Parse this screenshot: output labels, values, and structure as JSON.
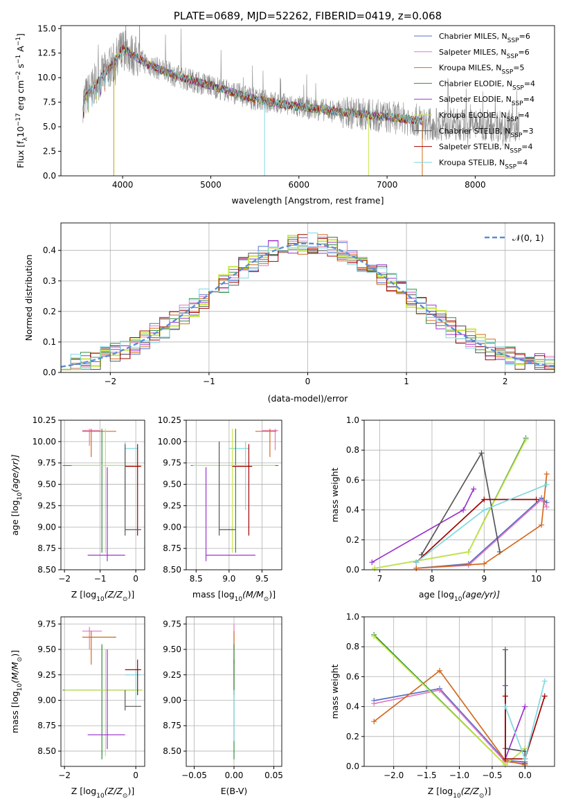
{
  "chart_data": [
    {
      "type": "line",
      "title": "PLATE=0689, MJD=52262, FIBERID=0419, z=0.068",
      "xlabel": "wavelength [Angstrom, rest frame]",
      "ylabel": "Flux [f",
      "ylabel_parts": [
        "Flux [f",
        "λ",
        "10",
        "−17",
        " erg cm",
        "−2",
        " s",
        "−1",
        " A",
        "−1",
        "]"
      ],
      "xlim": [
        3300,
        8900
      ],
      "ylim": [
        0,
        15.3
      ],
      "xticks": [
        "4000",
        "5000",
        "6000",
        "7000",
        "8000"
      ],
      "yticks": [
        "0.0",
        "2.5",
        "5.0",
        "7.5",
        "10.0",
        "12.5",
        "15.0"
      ],
      "legend_placement": "top-right",
      "series": [
        {
          "name": "Chabrier MILES, N",
          "sub": "SSP",
          "suffix": "=6",
          "color": "#5470c6"
        },
        {
          "name": "Salpeter MILES, N",
          "sub": "SSP",
          "suffix": "=6",
          "color": "#e377c2"
        },
        {
          "name": "Kroupa MILES, N",
          "sub": "SSP",
          "suffix": "=5",
          "color": "#d2691e"
        },
        {
          "name": "Chabrier ELODIE, N",
          "sub": "SSP",
          "suffix": "=4",
          "color": "#2e8b3e"
        },
        {
          "name": "Salpeter ELODIE, N",
          "sub": "SSP",
          "suffix": "=4",
          "color": "#9932cc"
        },
        {
          "name": "Kroupa ELODIE, N",
          "sub": "SSP",
          "suffix": "=4",
          "color": "#c8e64a"
        },
        {
          "name": "Chabrier STELIB, N",
          "sub": "SSP",
          "suffix": "=3",
          "color": "#555555"
        },
        {
          "name": "Salpeter STELIB, N",
          "sub": "SSP",
          "suffix": "=4",
          "color": "#a00000"
        },
        {
          "name": "Kroupa STELIB, N",
          "sub": "SSP",
          "suffix": "=4",
          "color": "#7fd8e0"
        }
      ],
      "continuum": {
        "x": [
          3550,
          3700,
          3900,
          4000,
          4100,
          4300,
          4600,
          5000,
          5500,
          6000,
          6500,
          7000,
          7400
        ],
        "y": [
          7.6,
          9.5,
          11.5,
          13.0,
          12.4,
          11.3,
          10.2,
          9.2,
          7.8,
          7.0,
          6.5,
          6.0,
          5.6
        ]
      }
    },
    {
      "type": "histogram",
      "xlabel": "(data-model)/error",
      "ylabel": "Normed distribution",
      "xlim": [
        -2.5,
        2.5
      ],
      "ylim": [
        0,
        0.49
      ],
      "xticks": [
        "−2",
        "−1",
        "0",
        "1",
        "2"
      ],
      "yticks": [
        "0.0",
        "0.1",
        "0.2",
        "0.3",
        "0.4"
      ],
      "grid": true,
      "legend": "𝒩(0, 1)",
      "legend_placement": "top-right",
      "bin_edges_start": -2.5,
      "bin_width": 0.1
    },
    {
      "type": "scatter",
      "xlabel": "Z [log",
      "xlabel_parts": [
        "Z [log",
        "10",
        "(Z/Z",
        "⊙",
        ")]"
      ],
      "ylabel_parts": [
        "age  [log",
        "10",
        "(age/yr)]"
      ],
      "xlim": [
        -2.1,
        0.25
      ],
      "ylim": [
        8.5,
        10.25
      ],
      "xticks": [
        {
          "v": -2,
          "t": "−2"
        },
        {
          "v": -1,
          "t": "−1"
        },
        {
          "v": 0,
          "t": "0"
        }
      ],
      "yticks": [
        "8.50",
        "8.75",
        "9.00",
        "9.25",
        "9.50",
        "9.75",
        "10.00",
        "10.25"
      ],
      "crosses": [
        {
          "x": -1.3,
          "xe": [
            -1.5,
            -1.0
          ],
          "y": 10.13,
          "ye": [
            9.95,
            10.15
          ],
          "color": "#e377c2"
        },
        {
          "x": -1.25,
          "xe": [
            -1.5,
            -0.55
          ],
          "y": 10.12,
          "ye": [
            9.82,
            10.15
          ],
          "color": "#d2691e"
        },
        {
          "x": -0.3,
          "xe": [
            -0.3,
            0.05
          ],
          "y": 9.92,
          "ye": [
            9.2,
            10.0
          ],
          "color": "#7fd8e0"
        },
        {
          "x": -0.95,
          "xe": [
            -2.05,
            0.15
          ],
          "y": 9.72,
          "ye": [
            8.7,
            10.15
          ],
          "color": "#2e8b3e"
        },
        {
          "x": -0.85,
          "xe": [
            -1.8,
            0.2
          ],
          "y": 9.72,
          "ye": [
            8.7,
            10.15
          ],
          "color": "#c8e64a"
        },
        {
          "x": 0.05,
          "xe": [
            -0.3,
            0.15
          ],
          "y": 9.71,
          "ye": [
            8.9,
            9.97
          ],
          "color": "#a00000"
        },
        {
          "x": -0.3,
          "xe": [
            -0.3,
            0.15
          ],
          "y": 8.97,
          "ye": [
            8.9,
            9.97
          ],
          "color": "#555555"
        },
        {
          "x": -0.8,
          "xe": [
            -1.35,
            -0.3
          ],
          "y": 8.67,
          "ye": [
            8.6,
            9.7
          ],
          "color": "#9932cc"
        }
      ]
    },
    {
      "type": "scatter",
      "xlabel_parts": [
        "mass [log",
        "10",
        "(M/M",
        "⊙",
        ")]"
      ],
      "xlim": [
        8.35,
        9.8
      ],
      "ylim": [
        8.5,
        10.25
      ],
      "xticks": [
        {
          "v": 8.5,
          "t": "8.5"
        },
        {
          "v": 9.0,
          "t": "9.0"
        },
        {
          "v": 9.5,
          "t": "9.5"
        }
      ],
      "yticks": [
        "8.50",
        "8.75",
        "9.00",
        "9.25",
        "9.50",
        "9.75",
        "10.00",
        "10.25"
      ],
      "crosses": [
        {
          "x": 9.7,
          "xe": [
            9.5,
            9.75
          ],
          "y": 10.13,
          "ye": [
            9.9,
            10.15
          ],
          "color": "#e377c2"
        },
        {
          "x": 9.62,
          "xe": [
            9.4,
            9.72
          ],
          "y": 10.12,
          "ye": [
            9.82,
            10.15
          ],
          "color": "#d2691e"
        },
        {
          "x": 9.25,
          "xe": [
            9.0,
            9.3
          ],
          "y": 9.92,
          "ye": [
            9.2,
            10.0
          ],
          "color": "#7fd8e0"
        },
        {
          "x": 9.1,
          "xe": [
            8.42,
            9.75
          ],
          "y": 9.72,
          "ye": [
            8.7,
            10.15
          ],
          "color": "#2e8b3e"
        },
        {
          "x": 9.05,
          "xe": [
            8.45,
            9.7
          ],
          "y": 9.72,
          "ye": [
            8.7,
            10.15
          ],
          "color": "#c8e64a"
        },
        {
          "x": 9.3,
          "xe": [
            9.05,
            9.35
          ],
          "y": 9.71,
          "ye": [
            8.9,
            9.97
          ],
          "color": "#a00000"
        },
        {
          "x": 8.85,
          "xe": [
            8.85,
            9.1
          ],
          "y": 8.97,
          "ye": [
            8.9,
            10.0
          ],
          "color": "#555555"
        },
        {
          "x": 8.65,
          "xe": [
            8.65,
            9.4
          ],
          "y": 8.67,
          "ye": [
            8.6,
            9.7
          ],
          "color": "#9932cc"
        }
      ]
    },
    {
      "type": "line",
      "xlabel_parts": [
        "age  [log",
        "10",
        "(age/yr)]"
      ],
      "ylabel": "mass weight",
      "xlim": [
        6.7,
        10.35
      ],
      "ylim": [
        0,
        1.0
      ],
      "xticks": [
        {
          "v": 7,
          "t": "7"
        },
        {
          "v": 8,
          "t": "8"
        },
        {
          "v": 9,
          "t": "9"
        },
        {
          "v": 10,
          "t": "10"
        }
      ],
      "yticks": [
        "0.0",
        "0.2",
        "0.4",
        "0.6",
        "0.8",
        "1.0"
      ],
      "grid": true,
      "series": [
        {
          "color": "#5470c6",
          "x": [
            7.7,
            8.7,
            10.1,
            10.2
          ],
          "y": [
            0.01,
            0.04,
            0.48,
            0.45
          ]
        },
        {
          "color": "#e377c2",
          "x": [
            7.7,
            8.7,
            10.1,
            10.2
          ],
          "y": [
            0.01,
            0.03,
            0.47,
            0.42
          ]
        },
        {
          "color": "#d2691e",
          "x": [
            7.7,
            9.0,
            10.1,
            10.2
          ],
          "y": [
            0.01,
            0.04,
            0.3,
            0.64
          ]
        },
        {
          "color": "#2e8b3e",
          "x": [
            6.9,
            8.7,
            9.8
          ],
          "y": [
            0.01,
            0.12,
            0.88
          ]
        },
        {
          "color": "#9932cc",
          "x": [
            6.85,
            8.6,
            8.8
          ],
          "y": [
            0.05,
            0.4,
            0.54
          ]
        },
        {
          "color": "#c8e64a",
          "x": [
            6.9,
            8.7,
            9.8
          ],
          "y": [
            0.01,
            0.12,
            0.87
          ]
        },
        {
          "color": "#555555",
          "x": [
            7.8,
            8.95,
            9.3
          ],
          "y": [
            0.1,
            0.78,
            0.12
          ]
        },
        {
          "color": "#a00000",
          "x": [
            7.7,
            9.0,
            10.0
          ],
          "y": [
            0.05,
            0.47,
            0.47
          ]
        },
        {
          "color": "#7fd8e0",
          "x": [
            7.7,
            9.0,
            10.2
          ],
          "y": [
            0.05,
            0.4,
            0.57
          ]
        }
      ]
    },
    {
      "type": "scatter",
      "xlabel_parts": [
        "Z [log",
        "10",
        "(Z/Z",
        "⊙",
        ")]"
      ],
      "ylabel_parts": [
        "mass [log",
        "10",
        "(M/M",
        "⊙",
        ")]"
      ],
      "xlim": [
        -2.1,
        0.25
      ],
      "ylim": [
        8.35,
        9.82
      ],
      "xticks": [
        {
          "v": -2,
          "t": "−2"
        },
        {
          "v": 0,
          "t": "0"
        }
      ],
      "yticks": [
        "8.50",
        "8.75",
        "9.00",
        "9.25",
        "9.50",
        "9.75"
      ],
      "crosses": [
        {
          "x": -1.3,
          "xe": [
            -1.5,
            -0.95
          ],
          "y": 9.68,
          "ye": [
            9.5,
            9.72
          ],
          "color": "#e377c2"
        },
        {
          "x": -1.25,
          "xe": [
            -1.5,
            -0.55
          ],
          "y": 9.62,
          "ye": [
            9.35,
            9.68
          ],
          "color": "#d2691e"
        },
        {
          "x": 0.0,
          "xe": [
            -0.3,
            0.15
          ],
          "y": 9.25,
          "ye": [
            9.0,
            9.3
          ],
          "color": "#7fd8e0"
        },
        {
          "x": -0.95,
          "xe": [
            -2.05,
            0.15
          ],
          "y": 9.1,
          "ye": [
            8.42,
            9.55
          ],
          "color": "#2e8b3e"
        },
        {
          "x": -0.85,
          "xe": [
            -2.0,
            0.2
          ],
          "y": 9.1,
          "ye": [
            8.45,
            9.5
          ],
          "color": "#c8e64a"
        },
        {
          "x": 0.05,
          "xe": [
            -0.3,
            0.15
          ],
          "y": 9.3,
          "ye": [
            9.05,
            9.4
          ],
          "color": "#a00000"
        },
        {
          "x": -0.3,
          "xe": [
            -0.3,
            0.15
          ],
          "y": 8.94,
          "ye": [
            8.9,
            9.1
          ],
          "color": "#555555"
        },
        {
          "x": -0.8,
          "xe": [
            -1.35,
            -0.3
          ],
          "y": 8.66,
          "ye": [
            8.52,
            9.5
          ],
          "color": "#9932cc"
        }
      ]
    },
    {
      "type": "scatter",
      "xlabel": "E(B-V)",
      "xlim": [
        -0.06,
        0.06
      ],
      "ylim": [
        8.35,
        9.82
      ],
      "xticks": [
        {
          "v": -0.05,
          "t": "−0.05"
        },
        {
          "v": 0.0,
          "t": "0.00"
        },
        {
          "v": 0.05,
          "t": "0.05"
        }
      ],
      "yticks": [
        "8.50",
        "8.75",
        "9.00",
        "9.25",
        "9.50",
        "9.75"
      ],
      "crosses": [
        {
          "x": 0.0,
          "xe": [
            0.0,
            0.0
          ],
          "y": 9.68,
          "ye": [
            9.5,
            9.75
          ],
          "color": "#e377c2"
        },
        {
          "x": 0.0,
          "xe": [
            0.0,
            0.0
          ],
          "y": 9.62,
          "ye": [
            9.35,
            9.68
          ],
          "color": "#d2691e"
        },
        {
          "x": 0.0,
          "xe": [
            0.0,
            0.0
          ],
          "y": 9.3,
          "ye": [
            9.05,
            9.4
          ],
          "color": "#a00000"
        },
        {
          "x": 0.0,
          "xe": [
            0.0,
            0.0
          ],
          "y": 9.1,
          "ye": [
            8.42,
            9.55
          ],
          "color": "#2e8b3e"
        },
        {
          "x": 0.0,
          "xe": [
            0.0,
            0.0
          ],
          "y": 8.9,
          "ye": [
            8.6,
            9.1
          ],
          "color": "#7fd8e0"
        }
      ]
    },
    {
      "type": "line",
      "xlabel_parts": [
        "Z [log",
        "10",
        "(Z/Z",
        "⊙",
        ")]"
      ],
      "ylabel": "mass weight",
      "xlim": [
        -2.45,
        0.45
      ],
      "ylim": [
        0,
        1.0
      ],
      "xticks": [
        {
          "v": -2.0,
          "t": "−2.0"
        },
        {
          "v": -1.5,
          "t": "−1.5"
        },
        {
          "v": -1.0,
          "t": "−1.0"
        },
        {
          "v": -0.5,
          "t": "−0.5"
        },
        {
          "v": 0.0,
          "t": "0.0"
        }
      ],
      "yticks": [
        "0.0",
        "0.2",
        "0.4",
        "0.6",
        "0.8",
        "1.0"
      ],
      "grid": true,
      "series": [
        {
          "color": "#5470c6",
          "x": [
            -2.3,
            -1.3,
            -0.3,
            0.0
          ],
          "y": [
            0.44,
            0.52,
            0.04,
            0.03
          ]
        },
        {
          "color": "#e377c2",
          "x": [
            -2.3,
            -1.3,
            -0.3,
            0.0
          ],
          "y": [
            0.42,
            0.51,
            0.03,
            0.02
          ]
        },
        {
          "color": "#d2691e",
          "x": [
            -2.3,
            -1.3,
            -0.3,
            0.0
          ],
          "y": [
            0.3,
            0.64,
            0.04,
            0.01
          ]
        },
        {
          "color": "#2e8b3e",
          "x": [
            -2.3,
            -0.3,
            0.0
          ],
          "y": [
            0.88,
            0.01,
            0.12
          ]
        },
        {
          "color": "#c8e64a",
          "x": [
            -2.3,
            -0.3,
            0.0
          ],
          "y": [
            0.87,
            0.01,
            0.12
          ]
        },
        {
          "color": "#9932cc",
          "x": [
            -0.3,
            -0.3,
            0.0
          ],
          "y": [
            0.54,
            0.05,
            0.4
          ]
        },
        {
          "color": "#555555",
          "x": [
            -0.3,
            -0.3,
            0.0,
            0.0
          ],
          "y": [
            0.78,
            0.12,
            0.1,
            0.02
          ]
        },
        {
          "color": "#a00000",
          "x": [
            -0.3,
            -0.3,
            0.0,
            0.3
          ],
          "y": [
            0.47,
            0.05,
            0.05,
            0.47
          ]
        },
        {
          "color": "#7fd8e0",
          "x": [
            -0.3,
            0.0,
            0.3
          ],
          "y": [
            0.4,
            0.05,
            0.57
          ]
        }
      ]
    }
  ]
}
